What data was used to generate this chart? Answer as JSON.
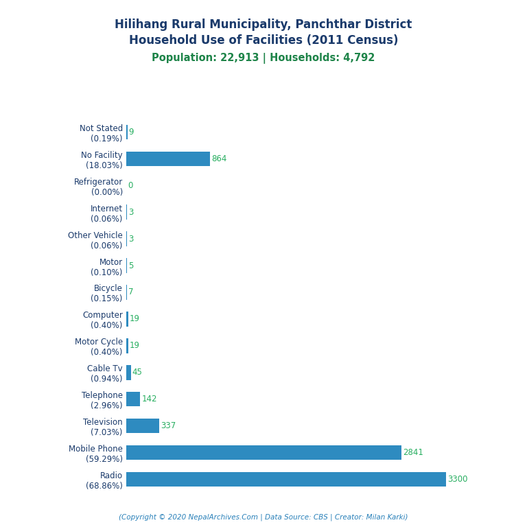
{
  "title_line1": "Hilihang Rural Municipality, Panchthar District",
  "title_line2": "Household Use of Facilities (2011 Census)",
  "subtitle": "Population: 22,913 | Households: 4,792",
  "footer": "(Copyright © 2020 NepalArchives.Com | Data Source: CBS | Creator: Milan Karki)",
  "categories": [
    "Radio\n(68.86%)",
    "Mobile Phone\n(59.29%)",
    "Television\n(7.03%)",
    "Telephone\n(2.96%)",
    "Cable Tv\n(0.94%)",
    "Motor Cycle\n(0.40%)",
    "Computer\n(0.40%)",
    "Bicycle\n(0.15%)",
    "Motor\n(0.10%)",
    "Other Vehicle\n(0.06%)",
    "Internet\n(0.06%)",
    "Refrigerator\n(0.00%)",
    "No Facility\n(18.03%)",
    "Not Stated\n(0.19%)"
  ],
  "values": [
    3300,
    2841,
    337,
    142,
    45,
    19,
    19,
    7,
    5,
    3,
    3,
    0,
    864,
    9
  ],
  "bar_color": "#2e8bc0",
  "title_color": "#1a3a6b",
  "subtitle_color": "#1e8449",
  "value_color": "#27ae60",
  "footer_color": "#2980b9",
  "background_color": "#ffffff",
  "xlim": [
    0,
    3700
  ],
  "figsize": [
    7.68,
    7.68
  ],
  "dpi": 100
}
